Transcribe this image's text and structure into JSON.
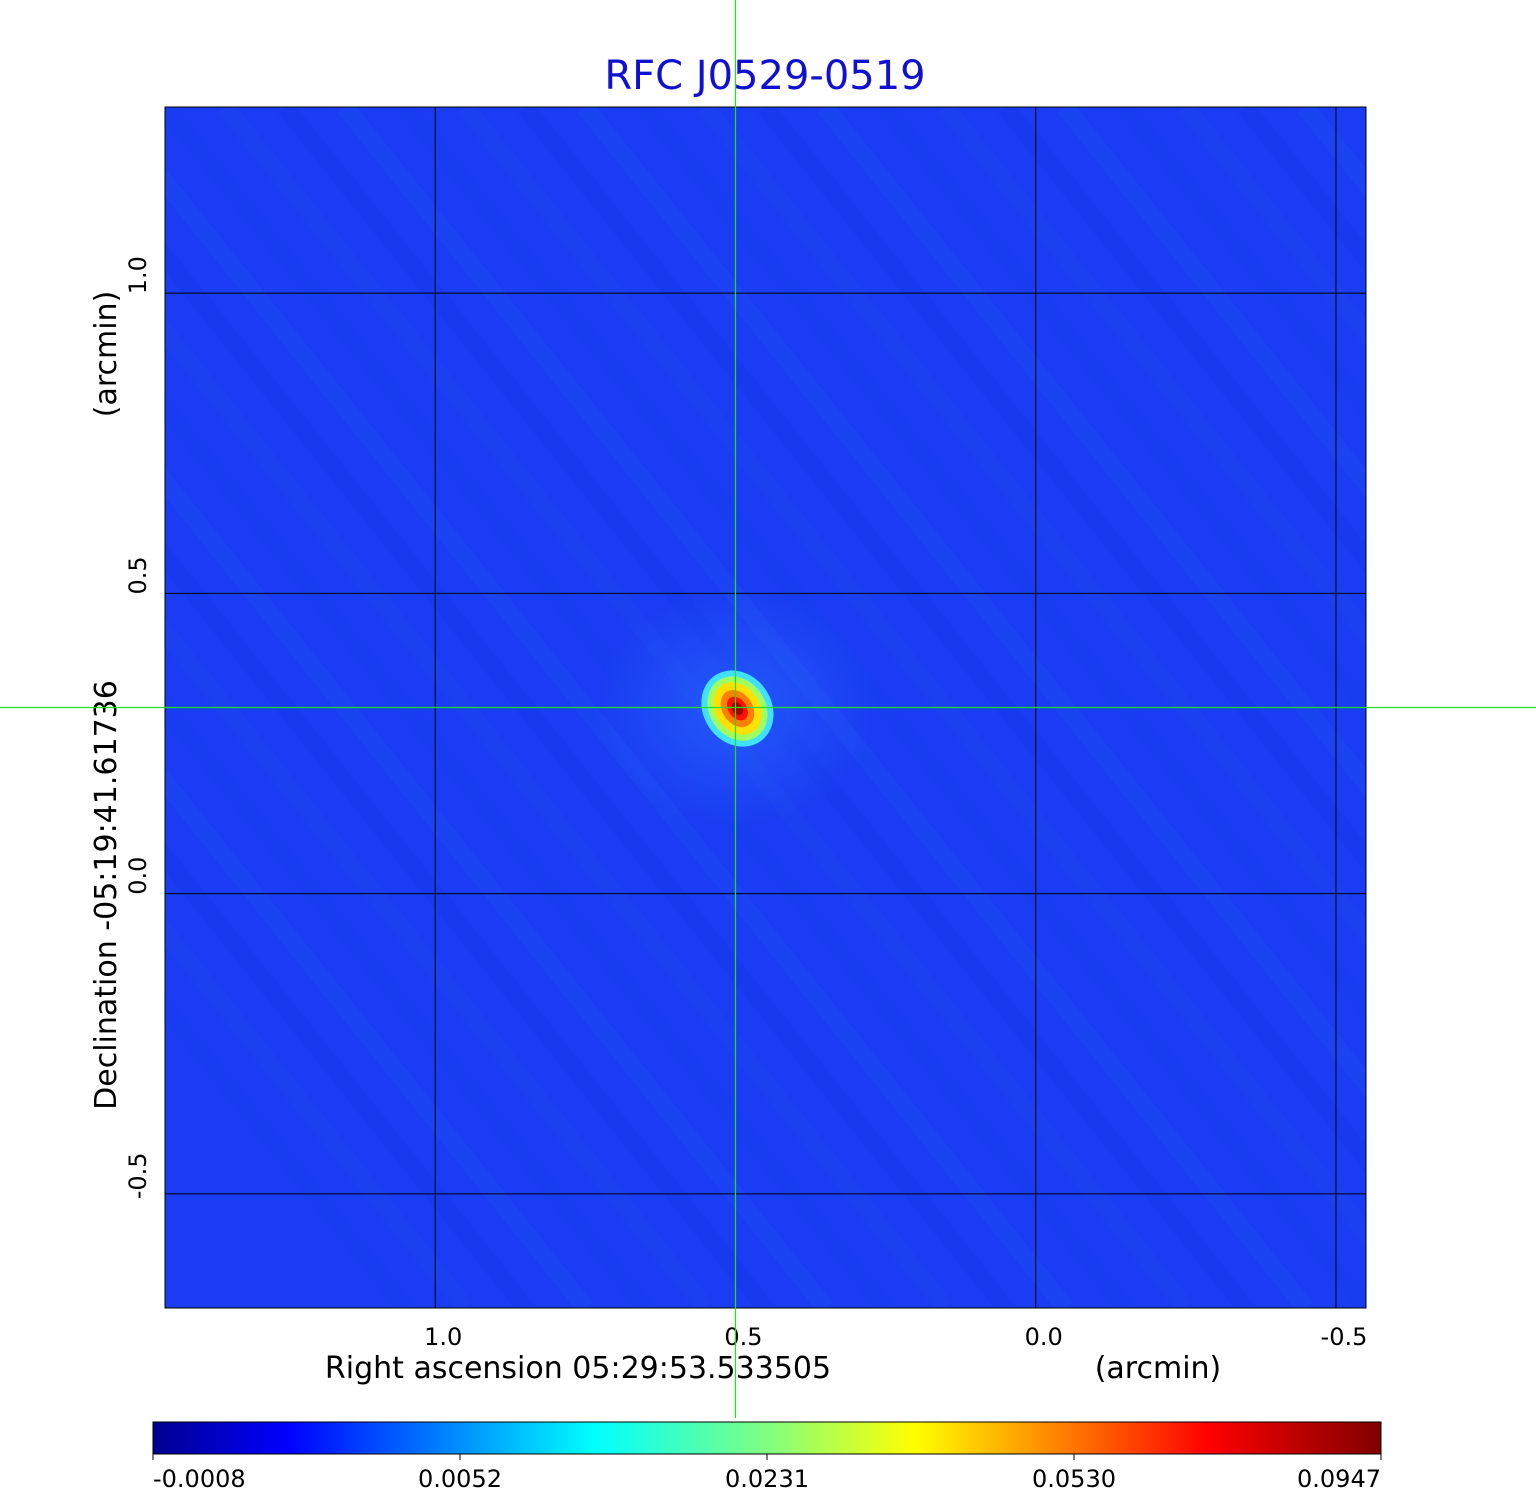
{
  "chart_data": {
    "type": "heatmap",
    "title": "RFC J0529-0519",
    "xlabel": "Right ascension  05:29:53.533505",
    "xunit": "(arcmin)",
    "ylabel": "Declination  -05:19:41.61736",
    "yunit": "(arcmin)",
    "x_ticks": [
      1.0,
      0.5,
      0.0,
      -0.5
    ],
    "x_tick_labels": [
      "1.0",
      "0.5",
      "0.0",
      "-0.5"
    ],
    "y_ticks": [
      1.0,
      0.5,
      0.0,
      -0.5
    ],
    "y_tick_labels": [
      "1.0",
      "0.5",
      "0.0",
      "-0.5"
    ],
    "xlim": [
      1.45,
      -0.55
    ],
    "ylim": [
      -0.69,
      1.31
    ],
    "grid": true,
    "crosshair": {
      "x": 0.5,
      "y": 0.31
    },
    "peak": {
      "x": 0.5,
      "y": 0.31,
      "value": 0.0947
    },
    "colorbar": {
      "ticks": [
        -0.0008,
        0.0052,
        0.0231,
        0.053,
        0.0947
      ],
      "tick_labels": [
        "-0.0008",
        "0.0052",
        "0.0231",
        "0.0530",
        "0.0947"
      ],
      "colormap": "jet"
    },
    "colors": {
      "title": "#1010d0",
      "background": "#1a3cf2",
      "grid": "#000000",
      "crosshair": "#22e022"
    }
  }
}
